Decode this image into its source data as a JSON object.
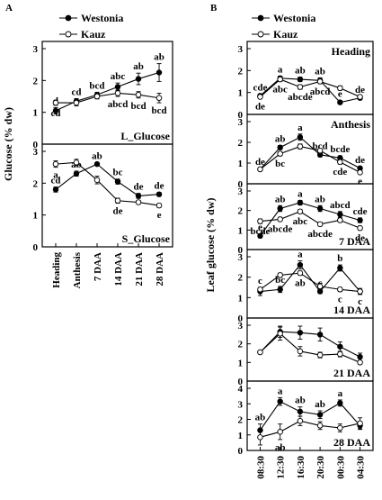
{
  "panel_labels": {
    "a": "A",
    "b": "B"
  },
  "legend": {
    "westonia": "Westonia",
    "kauz": "Kauz"
  },
  "chart_data": [
    {
      "type": "line",
      "panel": "A",
      "ylabel": "Glucose (% dw)",
      "categories": [
        "Heading",
        "Anthesis",
        "7 DAA",
        "14 DAA",
        "21 DAA",
        "28 DAA"
      ],
      "subplots": [
        {
          "label": "L_Glucose",
          "ylim": [
            0,
            3
          ],
          "yticks": [
            "0",
            "1",
            "2",
            "3"
          ],
          "series": [
            {
              "name": "Westonia",
              "values": [
                1.05,
                1.35,
                1.55,
                1.8,
                2.05,
                2.25
              ],
              "err": [
                0.1,
                0.08,
                0.08,
                0.12,
                0.18,
                0.28
              ],
              "labels": [
                "d",
                "cd",
                "bcd",
                "abc",
                "ab",
                "ab"
              ]
            },
            {
              "name": "Kauz",
              "values": [
                1.3,
                1.3,
                1.5,
                1.6,
                1.55,
                1.45
              ],
              "err": [
                0.08,
                0.1,
                0.08,
                0.1,
                0.1,
                0.15
              ],
              "labels": [
                "cd",
                "",
                "",
                "abcd",
                "bcd",
                "bcd"
              ]
            }
          ]
        },
        {
          "label": "S_Glucose",
          "ylim": [
            0,
            3
          ],
          "yticks": [
            "0",
            "1",
            "2",
            "3"
          ],
          "series": [
            {
              "name": "Westonia",
              "values": [
                1.8,
                2.3,
                2.6,
                2.05,
                1.6,
                1.65
              ],
              "err": [
                0.08,
                0.08,
                0.05,
                0.08,
                0.08,
                0.06
              ],
              "labels": [
                "cd",
                "ab",
                "ab",
                "bc",
                "de",
                "de"
              ]
            },
            {
              "name": "Kauz",
              "values": [
                2.6,
                2.65,
                2.1,
                1.45,
                1.4,
                1.3
              ],
              "err": [
                0.1,
                0.1,
                0.12,
                0.08,
                0.06,
                0.06
              ],
              "labels": [
                "a",
                "a",
                "",
                "de",
                "",
                "e"
              ]
            }
          ]
        }
      ]
    },
    {
      "type": "line",
      "panel": "B",
      "ylabel": "Leaf glucose (% dw)",
      "categories": [
        "08:30",
        "12:30",
        "16:30",
        "20:30",
        "00:30",
        "04:30"
      ],
      "subplots": [
        {
          "label": "Heading",
          "ylim": [
            0,
            3
          ],
          "yticks": [
            "0",
            "1",
            "2",
            "3"
          ],
          "series": [
            {
              "name": "Westonia",
              "values": [
                0.85,
                1.65,
                1.6,
                1.55,
                0.55,
                0.75
              ],
              "err": [
                0.08,
                0.1,
                0.1,
                0.12,
                0.08,
                0.08
              ],
              "labels": [
                "cde",
                "a",
                "ab",
                "ab",
                "e",
                "de"
              ]
            },
            {
              "name": "Kauz",
              "values": [
                0.8,
                1.6,
                1.25,
                1.5,
                1.2,
                0.8
              ],
              "err": [
                0.08,
                0.1,
                0.1,
                0.1,
                0.1,
                0.08
              ],
              "labels": [
                "de",
                "abc",
                "abcde",
                "abcd",
                "",
                ""
              ]
            }
          ]
        },
        {
          "label": "Anthesis",
          "ylim": [
            0,
            3
          ],
          "yticks": [
            "0",
            "1",
            "2",
            "3"
          ],
          "series": [
            {
              "name": "Westonia",
              "values": [
                0.7,
                1.75,
                2.25,
                1.4,
                1.25,
                0.75
              ],
              "err": [
                0.05,
                0.1,
                0.15,
                0.1,
                0.1,
                0.08
              ],
              "labels": [
                "de",
                "ab",
                "a",
                "bcd",
                "bcde",
                "de"
              ]
            },
            {
              "name": "Kauz",
              "values": [
                0.7,
                1.45,
                1.8,
                1.6,
                1.05,
                0.55
              ],
              "err": [
                0.05,
                0.1,
                0.12,
                0.1,
                0.1,
                0.06
              ],
              "labels": [
                "",
                "bc",
                "",
                "",
                "cde",
                "e"
              ]
            }
          ]
        },
        {
          "label": "7 DAA",
          "ylim": [
            0,
            3
          ],
          "yticks": [
            "0",
            "1",
            "2",
            "3"
          ],
          "series": [
            {
              "name": "Westonia",
              "values": [
                0.7,
                2.1,
                2.4,
                2.1,
                1.8,
                1.5
              ],
              "err": [
                0.1,
                0.15,
                0.12,
                0.15,
                0.15,
                0.12
              ],
              "labels": [
                "e",
                "ab",
                "a",
                "ab",
                "abcd",
                "cde"
              ]
            },
            {
              "name": "Kauz",
              "values": [
                1.45,
                1.55,
                1.95,
                1.3,
                1.5,
                1.1
              ],
              "err": [
                0.12,
                0.1,
                0.1,
                0.1,
                0.1,
                0.1
              ],
              "labels": [
                "bcde",
                "abcde",
                "abc",
                "abcde",
                "",
                "de"
              ]
            }
          ]
        },
        {
          "label": "14 DAA",
          "ylim": [
            0,
            3
          ],
          "yticks": [
            "0",
            "1",
            "2",
            "3"
          ],
          "series": [
            {
              "name": "Westonia",
              "values": [
                1.3,
                1.4,
                2.6,
                1.3,
                2.45,
                1.3
              ],
              "err": [
                0.2,
                0.15,
                0.2,
                0.1,
                0.15,
                0.15
              ],
              "labels": [
                "c",
                "bc",
                "a",
                "c",
                "b",
                ""
              ]
            },
            {
              "name": "Kauz",
              "values": [
                1.4,
                2.1,
                2.2,
                1.55,
                1.4,
                1.3
              ],
              "err": [
                0.1,
                0.1,
                0.1,
                0.15,
                0.1,
                0.1
              ],
              "labels": [
                "",
                "",
                "ab",
                "",
                "c",
                "c"
              ]
            }
          ]
        },
        {
          "label": "21 DAA",
          "ylim": [
            0,
            3
          ],
          "yticks": [
            "0",
            "1",
            "2",
            "3"
          ],
          "series": [
            {
              "name": "Westonia",
              "values": [
                1.55,
                2.65,
                2.6,
                2.5,
                1.85,
                1.3
              ],
              "err": [
                0.08,
                0.3,
                0.35,
                0.35,
                0.25,
                0.2
              ],
              "labels": [
                "",
                "",
                "",
                "",
                "",
                ""
              ]
            },
            {
              "name": "Kauz",
              "values": [
                1.55,
                2.55,
                1.6,
                1.4,
                1.45,
                1.0
              ],
              "err": [
                0.08,
                0.35,
                0.25,
                0.15,
                0.15,
                0.1
              ],
              "labels": [
                "",
                "",
                "",
                "",
                "",
                ""
              ]
            }
          ]
        },
        {
          "label": "28 DAA",
          "ylim": [
            0,
            4
          ],
          "yticks": [
            "0",
            "1",
            "2",
            "3",
            "4"
          ],
          "series": [
            {
              "name": "Westonia",
              "values": [
                1.3,
                3.15,
                2.5,
                2.3,
                3.05,
                1.6
              ],
              "err": [
                0.4,
                0.25,
                0.3,
                0.25,
                0.2,
                0.25
              ],
              "labels": [
                "ab",
                "a",
                "ab",
                "ab",
                "a",
                ""
              ]
            },
            {
              "name": "Kauz",
              "values": [
                0.85,
                1.2,
                1.9,
                1.6,
                1.45,
                1.75
              ],
              "err": [
                0.5,
                0.5,
                0.3,
                0.25,
                0.25,
                0.35
              ],
              "labels": [
                "",
                "ab",
                "",
                "",
                "",
                ""
              ]
            }
          ]
        }
      ]
    }
  ]
}
